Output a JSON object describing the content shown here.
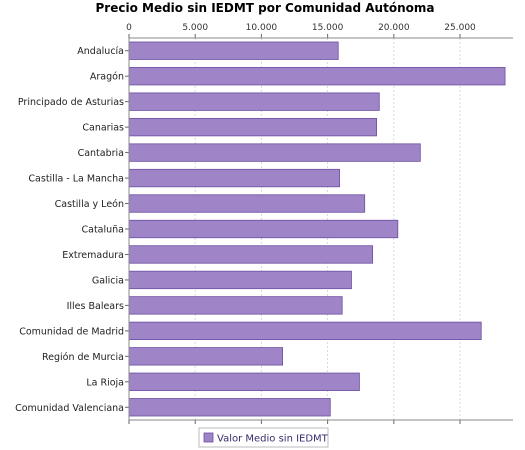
{
  "chart_data": {
    "type": "bar",
    "orientation": "horizontal",
    "title": "Precio Medio sin IEDMT por Comunidad Autónoma",
    "xlabel": "",
    "ylabel": "",
    "x_axis_position": "top",
    "xlim": [
      0,
      29000
    ],
    "x_ticks": [
      {
        "value": 0,
        "label": "0"
      },
      {
        "value": 5000,
        "label": "5.000"
      },
      {
        "value": 10000,
        "label": "10.000"
      },
      {
        "value": 15000,
        "label": "15.000"
      },
      {
        "value": 20000,
        "label": "20.000"
      },
      {
        "value": 25000,
        "label": "25.000"
      }
    ],
    "grid": "vertical dashed",
    "legend_position": "bottom-center",
    "categories": [
      "Andalucía",
      "Aragón",
      "Principado de Asturias",
      "Canarias",
      "Cantabria",
      "Castilla - La Mancha",
      "Castilla y León",
      "Cataluña",
      "Extremadura",
      "Galicia",
      "Illes Balears",
      "Comunidad de Madrid",
      "Región de Murcia",
      "La Rioja",
      "Comunidad Valenciana"
    ],
    "series": [
      {
        "name": "Valor Medio sin IEDMT",
        "color": "#a084c8",
        "values": [
          15800,
          28400,
          18900,
          18700,
          22000,
          15900,
          17800,
          20300,
          18400,
          16800,
          16100,
          26600,
          11600,
          17400,
          15200
        ]
      }
    ]
  }
}
